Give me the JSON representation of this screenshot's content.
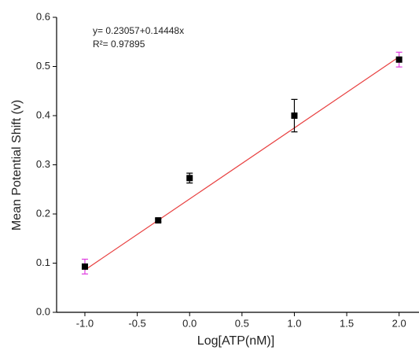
{
  "chart_data": {
    "type": "scatter",
    "x_label": "Log[ATP(nM)]",
    "y_label": "Mean Potential Shift (v)",
    "annotations": [
      "y= 0.23057+0.14448x",
      "R²= 0.97895"
    ],
    "x": [
      -1,
      -0.3,
      0,
      1,
      2
    ],
    "series": [
      {
        "color": "#000000",
        "values": [
          0.093,
          0.187,
          0.273,
          0.4,
          0.514
        ],
        "errors": [
          0.015,
          0.003,
          0.01,
          0.033,
          0.015
        ],
        "error_colors": [
          "#e040e0",
          "#000000",
          "#000000",
          "#000000",
          "#e040e0"
        ]
      }
    ],
    "fit": {
      "intercept": 0.23057,
      "slope": 0.14448,
      "color": "#e84040"
    },
    "xlim": [
      -1.27,
      2.19
    ],
    "ylim": [
      0,
      0.6
    ],
    "xticks": [
      {
        "value": -1,
        "label": "-1.0"
      },
      -0.5,
      {
        "value": 0,
        "label": "0.0"
      },
      0.5,
      {
        "value": 1,
        "label": "1.0"
      },
      1.5,
      {
        "value": 2,
        "label": "2.0"
      }
    ],
    "yticks": [
      {
        "value": 0,
        "label": "0.0"
      },
      0.1,
      0.2,
      0.3,
      0.4,
      0.5,
      0.6
    ]
  }
}
